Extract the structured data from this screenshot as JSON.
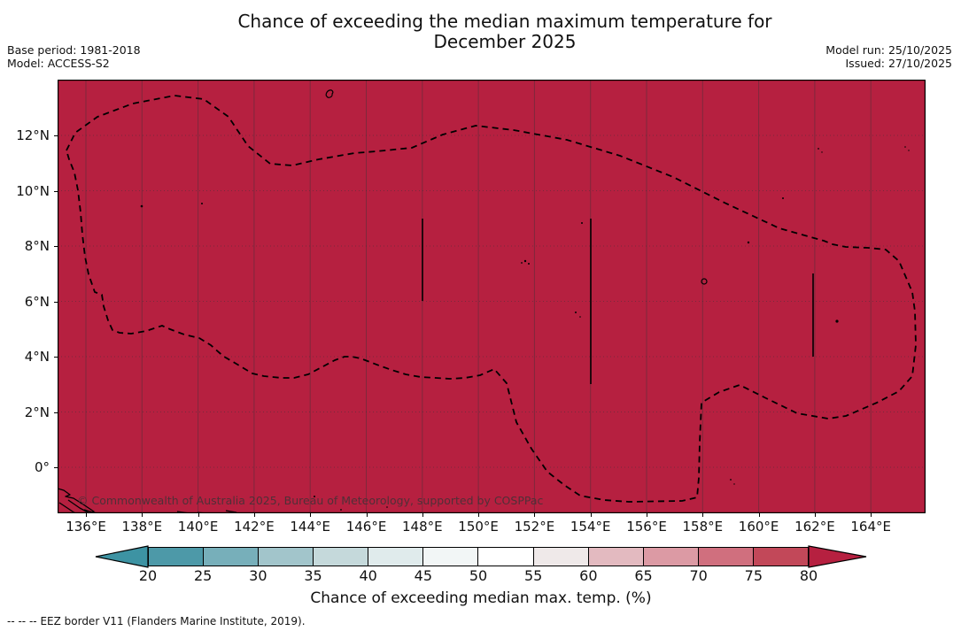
{
  "header": {
    "title_line1": "Chance of exceeding the median maximum temperature for",
    "title_line2": "December 2025",
    "base_period": "Base period: 1981-2018",
    "model": "Model: ACCESS-S2",
    "model_run": "Model run: 25/10/2025",
    "issued": "Issued: 27/10/2025"
  },
  "map": {
    "fill_color": "#b62040",
    "watermark": "© Commonwealth of Australia 2025, Bureau of Meteorology, supported by COSPPac",
    "lat_tick_labels": [
      "12°N",
      "10°N",
      "8°N",
      "6°N",
      "4°N",
      "2°N",
      "0°"
    ],
    "lon_tick_labels": [
      "136°E",
      "138°E",
      "140°E",
      "142°E",
      "144°E",
      "146°E",
      "148°E",
      "150°E",
      "152°E",
      "154°E",
      "156°E",
      "158°E",
      "160°E",
      "162°E",
      "164°E"
    ]
  },
  "colorbar": {
    "label": "Chance of exceeding median max. temp. (%)",
    "tick_labels": [
      "20",
      "25",
      "30",
      "35",
      "40",
      "45",
      "50",
      "55",
      "60",
      "65",
      "70",
      "75",
      "80"
    ],
    "segment_colors": [
      "#4d99a8",
      "#77afba",
      "#a2c5cb",
      "#c5d9db",
      "#e0ebec",
      "#f2f6f6",
      "#ffffff",
      "#efe9e9",
      "#e3bac0",
      "#dc9aa4",
      "#d06f7e",
      "#c24859"
    ],
    "left_arrow_color": "#3d93a3",
    "right_arrow_color": "#b62040"
  },
  "footer": {
    "legend_symbol": "--  --  --",
    "legend_text": "EEZ border V11 (Flanders Marine Institute, 2019)."
  },
  "chart_data": {
    "type": "heatmap",
    "subtype": "geographic probability forecast map",
    "title": "Chance of exceeding the median maximum temperature for December 2025",
    "base_period": "1981-2018",
    "model": "ACCESS-S2",
    "model_run": "25/10/2025",
    "issued": "27/10/2025",
    "x_axis": {
      "label": "longitude",
      "ticks_deg_east": [
        136,
        138,
        140,
        142,
        144,
        146,
        148,
        150,
        152,
        154,
        156,
        158,
        160,
        162,
        164
      ],
      "range_deg_east": [
        135.0,
        166.0
      ]
    },
    "y_axis": {
      "label": "latitude",
      "ticks_deg_north": [
        0,
        2,
        4,
        6,
        8,
        10,
        12
      ],
      "range_deg_north": [
        -1.7,
        14.0
      ]
    },
    "colorbar": {
      "label": "Chance of exceeding median max. temp. (%)",
      "tick_values": [
        20,
        25,
        30,
        35,
        40,
        45,
        50,
        55,
        60,
        65,
        70,
        75,
        80
      ],
      "extend": "both",
      "colors_low_to_high": [
        "#3d93a3",
        "#4d99a8",
        "#77afba",
        "#a2c5cb",
        "#c5d9db",
        "#e0ebec",
        "#f2f6f6",
        "#ffffff",
        "#efe9e9",
        "#e3bac0",
        "#dc9aa4",
        "#d06f7e",
        "#c24859",
        "#b62040"
      ]
    },
    "field_values": "Entire mapped ocean domain is shaded in the highest class (> 80% chance of exceeding the median maximum temperature)",
    "overlays": [
      "dashed EEZ border V11 outline around the Palau / Federated States of Micronesia region",
      "solid meridional boundary segments near 148°E (6-9°N), 154°E (3-9°N) and 162°E (4-7°N)",
      "small island outlines and coastline of New Guinea at lower left"
    ],
    "grid": true,
    "legend_position": "horizontal colorbar below map"
  }
}
